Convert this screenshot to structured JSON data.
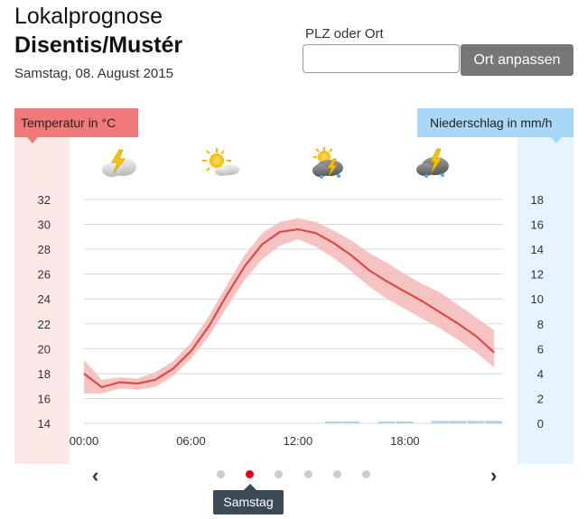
{
  "header": {
    "title": "Lokalprognose",
    "location": "Disentis/Mustér",
    "date": "Samstag, 08. August 2015"
  },
  "search": {
    "label": "PLZ oder Ort",
    "value": "",
    "placeholder": "",
    "button_label": "Ort anpassen"
  },
  "weather_icons": [
    "thunderstorm-cloudy-icon",
    "sun-cloud-icon",
    "sun-thunder-rain-icon",
    "thunder-rain-cloud-icon"
  ],
  "pager": {
    "prev_icon": "‹",
    "next_icon": "›",
    "dots": 6,
    "active_index": 1,
    "active_label": "Samstag"
  },
  "colors": {
    "temp_line": "#e04848",
    "temp_band": "#f4b9b9",
    "temp_label_bg": "#f07a7a",
    "precip_label_bg": "#a8d8f5",
    "precip_bar": "#aed3ee",
    "active_dot": "#e3000f"
  },
  "chart_data": {
    "type": "line",
    "title": "",
    "left_axis_label": "Temperatur in °C",
    "right_axis_label": "Niederschlag in mm/h",
    "x_tick_labels": [
      "00:00",
      "06:00",
      "12:00",
      "18:00"
    ],
    "x_ticks": [
      0,
      6,
      12,
      18
    ],
    "xlim": [
      0,
      23.5
    ],
    "ylim_left": [
      14,
      32
    ],
    "y_ticks_left": [
      14,
      16,
      18,
      20,
      22,
      24,
      26,
      28,
      30,
      32
    ],
    "ylim_right": [
      0,
      18
    ],
    "y_ticks_right": [
      0,
      2,
      4,
      6,
      8,
      10,
      12,
      14,
      16,
      18
    ],
    "grid": true,
    "series": [
      {
        "kind": "temperature",
        "x": [
          0,
          1,
          2,
          3,
          4,
          5,
          6,
          7,
          8,
          9,
          10,
          11,
          12,
          13,
          14,
          15,
          16,
          17,
          18,
          19,
          20,
          21,
          22,
          23
        ],
        "values": [
          18.0,
          16.9,
          17.3,
          17.2,
          17.5,
          18.4,
          19.8,
          21.8,
          24.3,
          26.6,
          28.4,
          29.4,
          29.6,
          29.3,
          28.5,
          27.5,
          26.3,
          25.4,
          24.6,
          23.8,
          22.9,
          22.0,
          21.0,
          19.7
        ],
        "lower": [
          16.4,
          16.4,
          16.8,
          16.7,
          16.9,
          17.8,
          19.2,
          21.0,
          23.3,
          25.5,
          27.2,
          28.3,
          28.8,
          28.2,
          27.3,
          26.2,
          25.0,
          24.0,
          23.2,
          22.4,
          21.6,
          20.7,
          19.7,
          18.5
        ],
        "upper": [
          19.1,
          17.5,
          17.7,
          17.6,
          18.1,
          19.0,
          20.5,
          22.6,
          25.1,
          27.5,
          29.3,
          30.2,
          30.5,
          30.2,
          29.5,
          28.7,
          27.7,
          26.9,
          26.0,
          25.2,
          24.5,
          23.5,
          22.5,
          21.5
        ]
      },
      {
        "kind": "precipitation",
        "x": [
          14.5,
          15.5,
          17.5,
          18.5,
          20.5,
          21.5,
          22.5,
          23.5
        ],
        "values": [
          0.15,
          0.15,
          0.15,
          0.15,
          0.2,
          0.2,
          0.2,
          0.2
        ]
      }
    ]
  }
}
